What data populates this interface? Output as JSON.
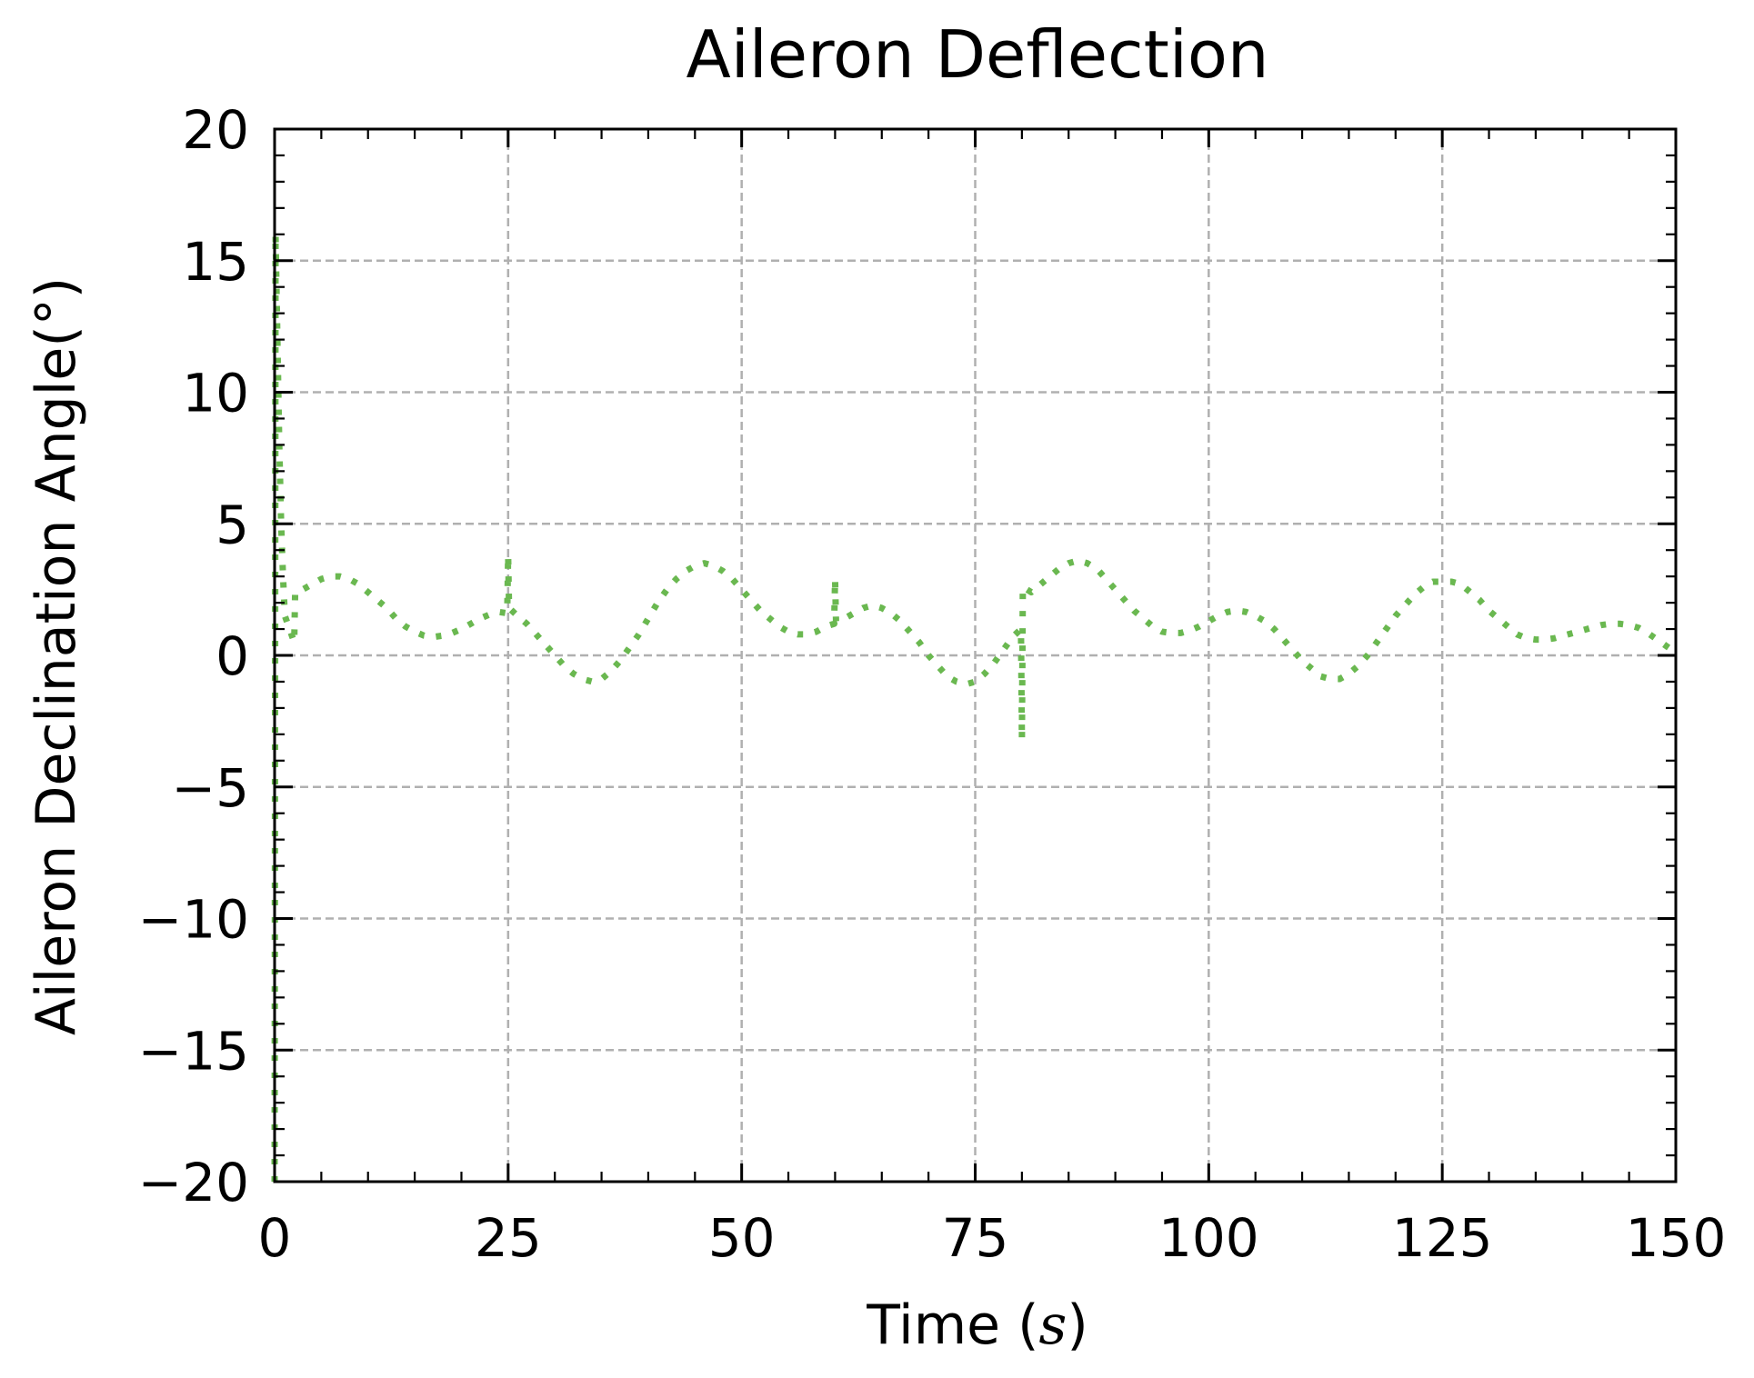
{
  "chart_data": {
    "type": "line",
    "title": "Aileron Deflection",
    "xlabel_prefix": "Time (",
    "xlabel_unit": "s",
    "xlabel_suffix": ")",
    "ylabel": "Aileron Declination Angle(°)",
    "xlim": [
      0,
      150
    ],
    "ylim": [
      -20,
      20
    ],
    "x_ticks": [
      0,
      25,
      50,
      75,
      100,
      125,
      150
    ],
    "x_tick_labels": [
      "0",
      "25",
      "50",
      "75",
      "100",
      "125",
      "150"
    ],
    "y_ticks": [
      -20,
      -15,
      -10,
      -5,
      0,
      5,
      10,
      15,
      20
    ],
    "y_tick_labels": [
      "−20",
      "−15",
      "−10",
      "−5",
      "0",
      "5",
      "10",
      "15",
      "20"
    ],
    "grid": true,
    "line_style": "dotted",
    "series": [
      {
        "color": "#6ab850",
        "points": [
          [
            0,
            -20
          ],
          [
            0.1,
            16
          ],
          [
            0.3,
            12
          ],
          [
            0.5,
            8
          ],
          [
            0.7,
            5
          ],
          [
            0.9,
            3
          ],
          [
            1.1,
            1.5
          ],
          [
            1.4,
            1.2
          ],
          [
            1.8,
            0.8
          ],
          [
            2.1,
            0.5
          ],
          [
            2.2,
            2.4
          ],
          [
            3,
            2.5
          ],
          [
            4,
            2.7
          ],
          [
            5,
            2.9
          ],
          [
            6,
            3.0
          ],
          [
            7,
            3.0
          ],
          [
            8,
            2.9
          ],
          [
            9,
            2.7
          ],
          [
            10,
            2.4
          ],
          [
            11,
            2.1
          ],
          [
            12,
            1.8
          ],
          [
            13,
            1.4
          ],
          [
            14,
            1.1
          ],
          [
            15,
            0.9
          ],
          [
            16,
            0.75
          ],
          [
            17,
            0.7
          ],
          [
            18,
            0.75
          ],
          [
            19,
            0.85
          ],
          [
            20,
            1.0
          ],
          [
            21,
            1.2
          ],
          [
            22,
            1.4
          ],
          [
            23,
            1.55
          ],
          [
            24,
            1.65
          ],
          [
            24.9,
            1.6
          ],
          [
            25,
            3.8
          ],
          [
            25.1,
            1.8
          ],
          [
            26,
            1.5
          ],
          [
            27,
            1.2
          ],
          [
            28,
            0.8
          ],
          [
            29,
            0.4
          ],
          [
            30,
            0.0
          ],
          [
            31,
            -0.4
          ],
          [
            32,
            -0.7
          ],
          [
            33,
            -0.9
          ],
          [
            34,
            -1.0
          ],
          [
            35,
            -0.9
          ],
          [
            36,
            -0.6
          ],
          [
            37,
            -0.2
          ],
          [
            38,
            0.3
          ],
          [
            39,
            0.8
          ],
          [
            40,
            1.4
          ],
          [
            41,
            2.0
          ],
          [
            42,
            2.5
          ],
          [
            43,
            2.9
          ],
          [
            44,
            3.2
          ],
          [
            45,
            3.4
          ],
          [
            46,
            3.5
          ],
          [
            47,
            3.4
          ],
          [
            48,
            3.2
          ],
          [
            49,
            2.9
          ],
          [
            50,
            2.5
          ],
          [
            51,
            2.1
          ],
          [
            52,
            1.7
          ],
          [
            53,
            1.4
          ],
          [
            54,
            1.1
          ],
          [
            55,
            0.9
          ],
          [
            56,
            0.8
          ],
          [
            57,
            0.8
          ],
          [
            58,
            0.9
          ],
          [
            59,
            1.1
          ],
          [
            59.9,
            1.2
          ],
          [
            60,
            2.9
          ],
          [
            60.1,
            1.3
          ],
          [
            61,
            1.4
          ],
          [
            62,
            1.6
          ],
          [
            63,
            1.8
          ],
          [
            64,
            1.9
          ],
          [
            65,
            1.8
          ],
          [
            66,
            1.6
          ],
          [
            67,
            1.3
          ],
          [
            68,
            0.9
          ],
          [
            69,
            0.5
          ],
          [
            70,
            0.0
          ],
          [
            71,
            -0.4
          ],
          [
            72,
            -0.8
          ],
          [
            73,
            -1.0
          ],
          [
            74,
            -1.1
          ],
          [
            75,
            -1.0
          ],
          [
            76,
            -0.7
          ],
          [
            77,
            -0.3
          ],
          [
            78,
            0.2
          ],
          [
            79,
            0.7
          ],
          [
            79.9,
            1.0
          ],
          [
            80,
            -3.2
          ],
          [
            80.1,
            2.6
          ],
          [
            81,
            2.4
          ],
          [
            82,
            2.7
          ],
          [
            83,
            3.0
          ],
          [
            84,
            3.3
          ],
          [
            85,
            3.5
          ],
          [
            86,
            3.6
          ],
          [
            87,
            3.5
          ],
          [
            88,
            3.3
          ],
          [
            89,
            2.9
          ],
          [
            90,
            2.5
          ],
          [
            91,
            2.1
          ],
          [
            92,
            1.7
          ],
          [
            93,
            1.4
          ],
          [
            94,
            1.1
          ],
          [
            95,
            0.9
          ],
          [
            96,
            0.85
          ],
          [
            97,
            0.85
          ],
          [
            98,
            0.95
          ],
          [
            99,
            1.1
          ],
          [
            100,
            1.3
          ],
          [
            101,
            1.5
          ],
          [
            102,
            1.65
          ],
          [
            103,
            1.7
          ],
          [
            104,
            1.65
          ],
          [
            105,
            1.5
          ],
          [
            106,
            1.3
          ],
          [
            107,
            1.0
          ],
          [
            108,
            0.6
          ],
          [
            109,
            0.2
          ],
          [
            110,
            -0.2
          ],
          [
            111,
            -0.5
          ],
          [
            112,
            -0.8
          ],
          [
            113,
            -0.9
          ],
          [
            114,
            -0.9
          ],
          [
            115,
            -0.7
          ],
          [
            116,
            -0.4
          ],
          [
            117,
            0.0
          ],
          [
            118,
            0.5
          ],
          [
            119,
            1.0
          ],
          [
            120,
            1.5
          ],
          [
            121,
            1.9
          ],
          [
            122,
            2.3
          ],
          [
            123,
            2.6
          ],
          [
            124,
            2.8
          ],
          [
            125,
            2.8
          ],
          [
            126,
            2.8
          ],
          [
            127,
            2.7
          ],
          [
            128,
            2.4
          ],
          [
            129,
            2.1
          ],
          [
            130,
            1.7
          ],
          [
            131,
            1.4
          ],
          [
            132,
            1.1
          ],
          [
            133,
            0.8
          ],
          [
            134,
            0.65
          ],
          [
            135,
            0.6
          ],
          [
            136,
            0.6
          ],
          [
            137,
            0.65
          ],
          [
            138,
            0.75
          ],
          [
            139,
            0.85
          ],
          [
            140,
            0.95
          ],
          [
            141,
            1.05
          ],
          [
            142,
            1.15
          ],
          [
            143,
            1.2
          ],
          [
            144,
            1.2
          ],
          [
            145,
            1.15
          ],
          [
            146,
            1.05
          ],
          [
            147,
            0.85
          ],
          [
            148,
            0.6
          ],
          [
            149,
            0.35
          ],
          [
            150,
            0.1
          ]
        ]
      }
    ]
  }
}
